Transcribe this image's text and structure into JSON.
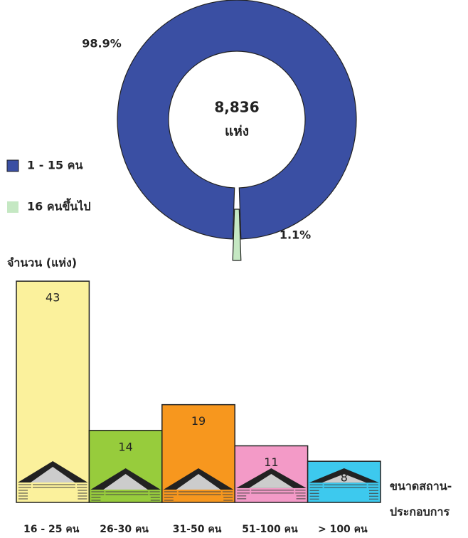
{
  "chart_data": [
    {
      "type": "donut",
      "center_label": "8,836",
      "center_unit": "แห่ง",
      "categories": [
        "1 - 15 คน",
        "16 คนขึ้นไป"
      ],
      "values": [
        98.9,
        1.1
      ],
      "value_labels": [
        "98.9%",
        "1.1%"
      ],
      "colors": [
        "#3a4fa3",
        "#c5e8c3"
      ]
    },
    {
      "type": "bar",
      "y_label": "จำนวน (แห่ง)",
      "x_label": [
        "ขนาดสถาน-",
        "ประกอบการ"
      ],
      "categories": [
        "16 - 25 คน",
        "26-30 คน",
        "31-50 คน",
        "51-100 คน",
        "> 100 คน"
      ],
      "values": [
        43,
        14,
        19,
        11,
        8
      ],
      "colors": [
        "#fbf19c",
        "#97cc3c",
        "#f7971e",
        "#f39ac7",
        "#3dc9ee"
      ]
    }
  ]
}
